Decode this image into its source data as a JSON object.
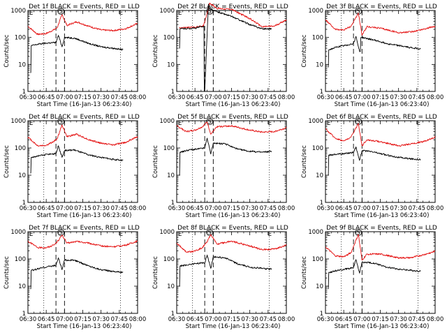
{
  "figure": {
    "xticks": [
      "06:30",
      "06:45",
      "07:00",
      "07:15",
      "07:30",
      "07:45",
      "08:00"
    ],
    "yticks": [
      "1",
      "10",
      "100",
      "1000"
    ],
    "ylabel": "Counts/sec",
    "xlabel": "Start Time (16-Jan-13 06:23:40)",
    "markers": {
      "left": "E",
      "center": "S",
      "right": "E"
    }
  },
  "colors": {
    "events": "#000000",
    "lld": "#e41010"
  },
  "chart_data": [
    {
      "type": "line",
      "title": "Det 1f BLACK = Events, RED = LLD",
      "ylim": [
        1,
        1000
      ],
      "log_y": true,
      "series": [
        {
          "color": "red",
          "x": [
            "06:30",
            "06:38",
            "06:45",
            "06:51",
            "06:54",
            "06:58",
            "07:02",
            "07:10",
            "07:20",
            "07:30",
            "07:40",
            "07:50",
            "08:00"
          ],
          "values": [
            260,
            130,
            140,
            190,
            230,
            700,
            280,
            380,
            260,
            190,
            180,
            210,
            330
          ]
        },
        {
          "color": "black",
          "x": [
            "06:32",
            "06:33",
            "06:40",
            "06:46",
            "06:53",
            "06:55",
            "06:58",
            "07:00",
            "07:08",
            "07:20",
            "07:30",
            "07:40",
            "07:48"
          ],
          "values": [
            5,
            50,
            58,
            62,
            65,
            120,
            45,
            100,
            95,
            60,
            45,
            40,
            35
          ]
        }
      ]
    },
    {
      "type": "line",
      "title": "Det 2f BLACK = Events, RED = LLD",
      "ylim": [
        1,
        1000
      ],
      "log_y": true,
      "series": [
        {
          "color": "red",
          "x": [
            "06:32",
            "06:35",
            "06:45",
            "06:52",
            "06:55",
            "06:57",
            "07:03",
            "07:15",
            "07:30",
            "07:40",
            "07:50",
            "08:00"
          ],
          "values": [
            230,
            230,
            240,
            270,
            800,
            1900,
            1200,
            1100,
            500,
            250,
            260,
            450
          ]
        },
        {
          "color": "black",
          "x": [
            "06:32",
            "06:33",
            "06:45",
            "06:52",
            "06:53",
            "06:56",
            "06:57",
            "07:03",
            "07:15",
            "07:30",
            "07:40",
            "07:48"
          ],
          "values": [
            40,
            210,
            220,
            260,
            1,
            1700,
            1100,
            900,
            600,
            300,
            210,
            210
          ]
        }
      ]
    },
    {
      "type": "line",
      "title": "Det 3f BLACK = Events, RED = LLD",
      "ylim": [
        1,
        1000
      ],
      "log_y": true,
      "series": [
        {
          "color": "red",
          "x": [
            "06:30",
            "06:38",
            "06:45",
            "06:51",
            "06:57",
            "07:00",
            "07:04",
            "07:15",
            "07:30",
            "07:40",
            "07:50",
            "08:00"
          ],
          "values": [
            450,
            200,
            190,
            260,
            800,
            120,
            250,
            220,
            150,
            160,
            200,
            260
          ]
        },
        {
          "color": "black",
          "x": [
            "06:32",
            "06:33",
            "06:40",
            "06:46",
            "06:53",
            "06:55",
            "06:58",
            "07:00",
            "07:10",
            "07:20",
            "07:30",
            "07:40",
            "07:48"
          ],
          "values": [
            8,
            35,
            45,
            50,
            60,
            110,
            30,
            100,
            80,
            60,
            50,
            42,
            38
          ]
        }
      ]
    },
    {
      "type": "line",
      "title": "Det 4f BLACK = Events, RED = LLD",
      "ylim": [
        1,
        1000
      ],
      "log_y": true,
      "series": [
        {
          "color": "red",
          "x": [
            "06:30",
            "06:38",
            "06:45",
            "06:51",
            "06:54",
            "06:58",
            "07:02",
            "07:10",
            "07:20",
            "07:30",
            "07:40",
            "07:50",
            "08:00"
          ],
          "values": [
            250,
            120,
            125,
            170,
            220,
            700,
            260,
            320,
            200,
            150,
            130,
            160,
            260
          ]
        },
        {
          "color": "black",
          "x": [
            "06:32",
            "06:33",
            "06:40",
            "06:46",
            "06:53",
            "06:55",
            "06:58",
            "07:00",
            "07:08",
            "07:20",
            "07:30",
            "07:40",
            "07:48"
          ],
          "values": [
            12,
            45,
            52,
            58,
            62,
            120,
            45,
            80,
            85,
            55,
            45,
            38,
            35
          ]
        }
      ]
    },
    {
      "type": "line",
      "title": "Det 5f BLACK = Events, RED = LLD",
      "ylim": [
        1,
        1000
      ],
      "log_y": true,
      "series": [
        {
          "color": "red",
          "x": [
            "06:30",
            "06:38",
            "06:45",
            "06:51",
            "06:55",
            "06:58",
            "07:03",
            "07:15",
            "07:30",
            "07:40",
            "07:50",
            "08:00"
          ],
          "values": [
            650,
            400,
            450,
            600,
            900,
            320,
            600,
            650,
            450,
            380,
            400,
            550
          ]
        },
        {
          "color": "black",
          "x": [
            "06:32",
            "06:33",
            "06:40",
            "06:46",
            "06:53",
            "06:55",
            "06:58",
            "07:00",
            "07:10",
            "07:20",
            "07:30",
            "07:40",
            "07:48"
          ],
          "values": [
            10,
            70,
            85,
            90,
            100,
            230,
            60,
            150,
            140,
            90,
            75,
            70,
            75
          ]
        }
      ]
    },
    {
      "type": "line",
      "title": "Det 6f BLACK = Events, RED = LLD",
      "ylim": [
        1,
        1000
      ],
      "log_y": true,
      "series": [
        {
          "color": "red",
          "x": [
            "06:30",
            "06:38",
            "06:45",
            "06:51",
            "06:57",
            "07:00",
            "07:04",
            "07:15",
            "07:30",
            "07:40",
            "07:50",
            "08:00"
          ],
          "values": [
            500,
            230,
            180,
            250,
            800,
            120,
            200,
            170,
            120,
            140,
            170,
            250
          ]
        },
        {
          "color": "black",
          "x": [
            "06:32",
            "06:33",
            "06:40",
            "06:46",
            "06:53",
            "06:55",
            "06:58",
            "07:00",
            "07:10",
            "07:20",
            "07:30",
            "07:40",
            "07:48"
          ],
          "values": [
            10,
            55,
            60,
            62,
            70,
            110,
            35,
            80,
            70,
            55,
            45,
            40,
            38
          ]
        }
      ]
    },
    {
      "type": "line",
      "title": "Det 7f BLACK = Events, RED = LLD",
      "ylim": [
        1,
        1000
      ],
      "log_y": true,
      "series": [
        {
          "color": "red",
          "x": [
            "06:30",
            "06:38",
            "06:45",
            "06:51",
            "06:54",
            "06:58",
            "07:02",
            "07:10",
            "07:20",
            "07:30",
            "07:40",
            "07:50",
            "08:00"
          ],
          "values": [
            450,
            260,
            260,
            320,
            420,
            750,
            380,
            440,
            380,
            300,
            280,
            320,
            450
          ]
        },
        {
          "color": "black",
          "x": [
            "06:32",
            "06:33",
            "06:40",
            "06:46",
            "06:53",
            "06:55",
            "06:58",
            "07:00",
            "07:08",
            "07:20",
            "07:30",
            "07:40",
            "07:48"
          ],
          "values": [
            8,
            38,
            45,
            52,
            58,
            110,
            40,
            90,
            90,
            55,
            40,
            35,
            32
          ]
        }
      ]
    },
    {
      "type": "line",
      "title": "Det 8f BLACK = Events, RED = LLD",
      "ylim": [
        1,
        1000
      ],
      "log_y": true,
      "series": [
        {
          "color": "red",
          "x": [
            "06:30",
            "06:38",
            "06:45",
            "06:51",
            "06:55",
            "06:58",
            "07:03",
            "07:15",
            "07:30",
            "07:40",
            "07:50",
            "08:00"
          ],
          "values": [
            380,
            180,
            190,
            260,
            420,
            800,
            350,
            450,
            300,
            220,
            230,
            320
          ]
        },
        {
          "color": "black",
          "x": [
            "06:32",
            "06:33",
            "06:40",
            "06:46",
            "06:53",
            "06:55",
            "06:58",
            "07:00",
            "07:10",
            "07:20",
            "07:30",
            "07:40",
            "07:48"
          ],
          "values": [
            10,
            55,
            62,
            68,
            72,
            140,
            45,
            120,
            110,
            65,
            50,
            45,
            42
          ]
        }
      ]
    },
    {
      "type": "line",
      "title": "Det 9f BLACK = Events, RED = LLD",
      "ylim": [
        1,
        1000
      ],
      "log_y": true,
      "series": [
        {
          "color": "red",
          "x": [
            "06:30",
            "06:38",
            "06:45",
            "06:51",
            "06:57",
            "07:00",
            "07:04",
            "07:15",
            "07:30",
            "07:40",
            "07:50",
            "08:00"
          ],
          "values": [
            280,
            130,
            120,
            170,
            800,
            90,
            150,
            150,
            110,
            110,
            140,
            190
          ]
        },
        {
          "color": "black",
          "x": [
            "06:32",
            "06:33",
            "06:40",
            "06:46",
            "06:53",
            "06:55",
            "06:58",
            "07:00",
            "07:10",
            "07:20",
            "07:30",
            "07:40",
            "07:48"
          ],
          "values": [
            8,
            32,
            38,
            42,
            48,
            95,
            30,
            75,
            70,
            50,
            42,
            38,
            35
          ]
        }
      ]
    }
  ]
}
